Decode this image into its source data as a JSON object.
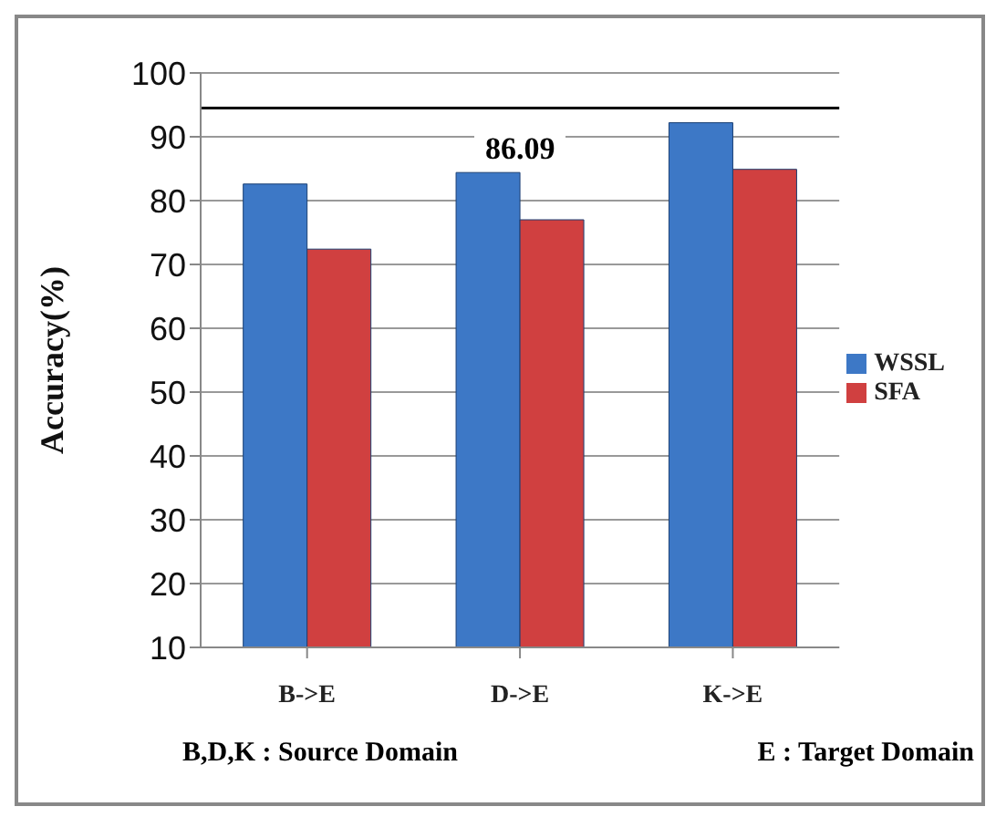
{
  "chart_data": {
    "type": "bar",
    "ylabel": "Accuracy(%)",
    "categories": [
      "B->E",
      "D->E",
      "K->E"
    ],
    "series": [
      {
        "name": "WSSL",
        "color": "#3d78c6",
        "values": [
          82.6,
          84.4,
          92.2
        ]
      },
      {
        "name": "SFA",
        "color": "#d04040",
        "values": [
          72.4,
          77.0,
          84.9
        ]
      }
    ],
    "ylim": [
      10,
      100
    ],
    "yticks": [
      10,
      20,
      30,
      40,
      50,
      60,
      70,
      80,
      90,
      100
    ],
    "grid": "y",
    "legend": "right",
    "ref_lines": [
      {
        "axis": "y",
        "value": 94.5,
        "color": "#000000"
      }
    ],
    "annotations": [
      "86.09",
      "B,D,K : Source Domain",
      "E : Target Domain"
    ]
  }
}
